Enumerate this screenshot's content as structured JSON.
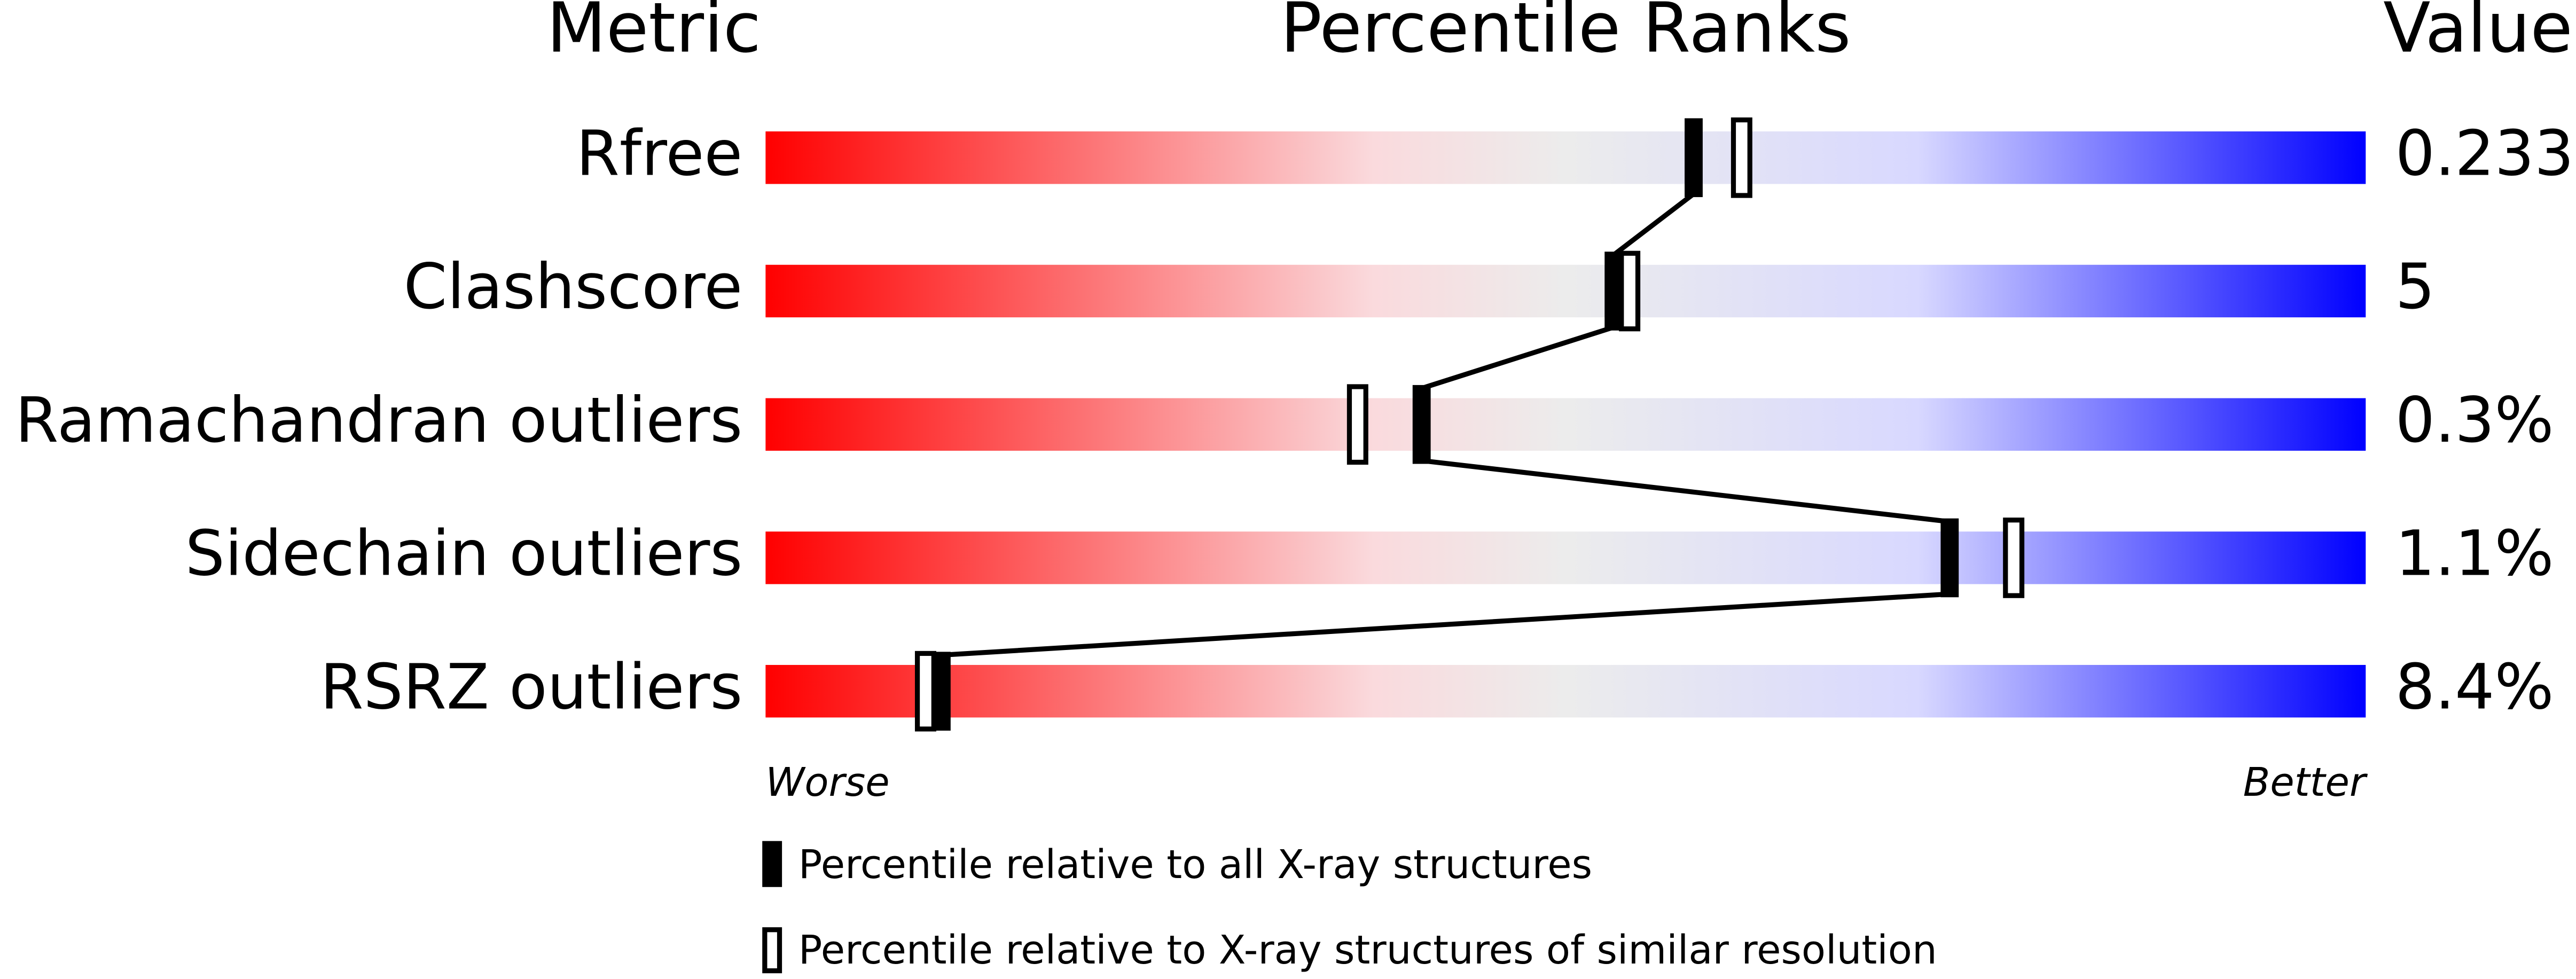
{
  "chart_data": {
    "type": "percentile",
    "column_headers": {
      "metric": "Metric",
      "ranks": "Percentile Ranks",
      "value": "Value"
    },
    "categories": [
      "Rfree",
      "Clashscore",
      "Ramachandran outliers",
      "Sidechain outliers",
      "RSRZ outliers"
    ],
    "metric_values": [
      "0.233",
      "5",
      "0.3%",
      "1.1%",
      "8.4%"
    ],
    "series": [
      {
        "name": "Percentile relative to all X-ray structures",
        "color": "#000000",
        "values": [
          58,
          53,
          41,
          74,
          11
        ]
      },
      {
        "name": "Percentile relative to X-ray structures of similar resolution",
        "color": "#000000",
        "values": [
          61,
          54,
          37,
          78,
          10
        ]
      }
    ],
    "xlim": [
      0,
      100
    ],
    "axis_end_labels": {
      "low": "Worse",
      "high": "Better"
    }
  }
}
